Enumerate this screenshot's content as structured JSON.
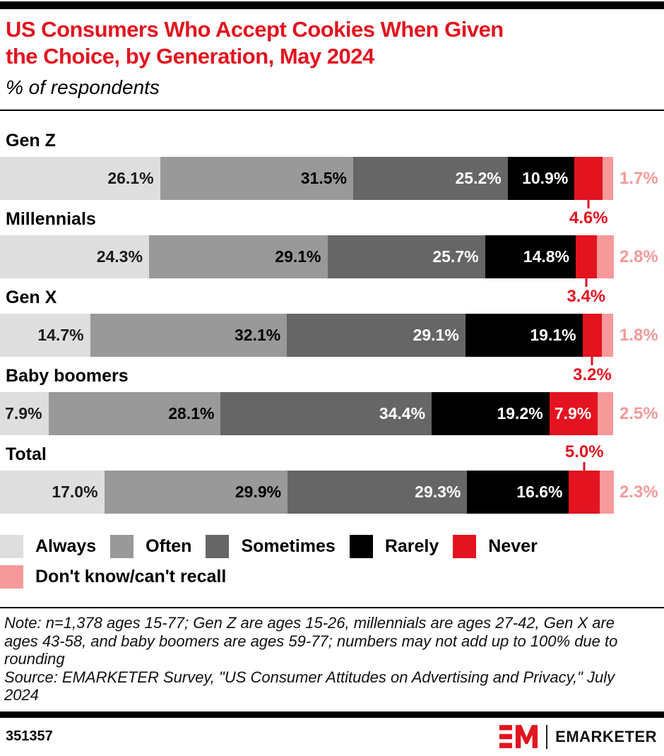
{
  "header": {
    "title_lines": [
      "US Consumers Who Accept Cookies When Given",
      "the Choice, by Generation, May 2024"
    ],
    "subtitle": "% of respondents"
  },
  "colors": {
    "brand_red": "#e3131f",
    "pink": "#f5999a",
    "light_gray": "#dedede",
    "mid_gray": "#999999",
    "dark_gray": "#666666",
    "black": "#000000"
  },
  "chart_data": {
    "type": "bar",
    "variant": "horizontal-stacked",
    "title": "US Consumers Who Accept Cookies When Given the Choice, by Generation, May 2024",
    "subtitle": "% of respondents",
    "unit": "%",
    "xlim": [
      0,
      100
    ],
    "grid": false,
    "legend_position": "bottom",
    "categories": [
      "Gen Z",
      "Millennials",
      "Gen X",
      "Baby boomers",
      "Total"
    ],
    "series": [
      {
        "name": "Always",
        "color": "#dedede",
        "label_color": "#1a1a1a",
        "values": [
          26.1,
          24.3,
          14.7,
          7.9,
          17.0
        ]
      },
      {
        "name": "Often",
        "color": "#999999",
        "label_color": "#000000",
        "values": [
          31.5,
          29.1,
          32.1,
          28.1,
          29.9
        ]
      },
      {
        "name": "Sometimes",
        "color": "#666666",
        "label_color": "#ffffff",
        "values": [
          25.2,
          25.7,
          29.1,
          34.4,
          29.3
        ]
      },
      {
        "name": "Rarely",
        "color": "#000000",
        "label_color": "#ffffff",
        "values": [
          10.9,
          14.8,
          19.1,
          19.2,
          16.6
        ]
      },
      {
        "name": "Never",
        "color": "#e3131f",
        "label_color": "#ffffff",
        "values": [
          4.6,
          3.4,
          3.2,
          7.9,
          5.0
        ]
      },
      {
        "name": "Don't know/can't recall",
        "color": "#f5999a",
        "label_color": "#f5999a",
        "values": [
          1.7,
          2.8,
          1.8,
          2.5,
          2.3
        ]
      }
    ],
    "never_label_placement": [
      "below",
      "below",
      "below",
      "inside",
      "above"
    ]
  },
  "notes": {
    "note": "Note: n=1,378 ages 15-77; Gen Z are ages 15-26, millennials are ages 27-42, Gen X are ages 43-58, and baby boomers are ages 59-77; numbers may not add up to 100% due to rounding",
    "source": "Source: EMARKETER Survey, \"US Consumer Attitudes on Advertising and Privacy,\" July 2024"
  },
  "footer": {
    "chart_id": "351357",
    "brand": "EMARKETER"
  }
}
